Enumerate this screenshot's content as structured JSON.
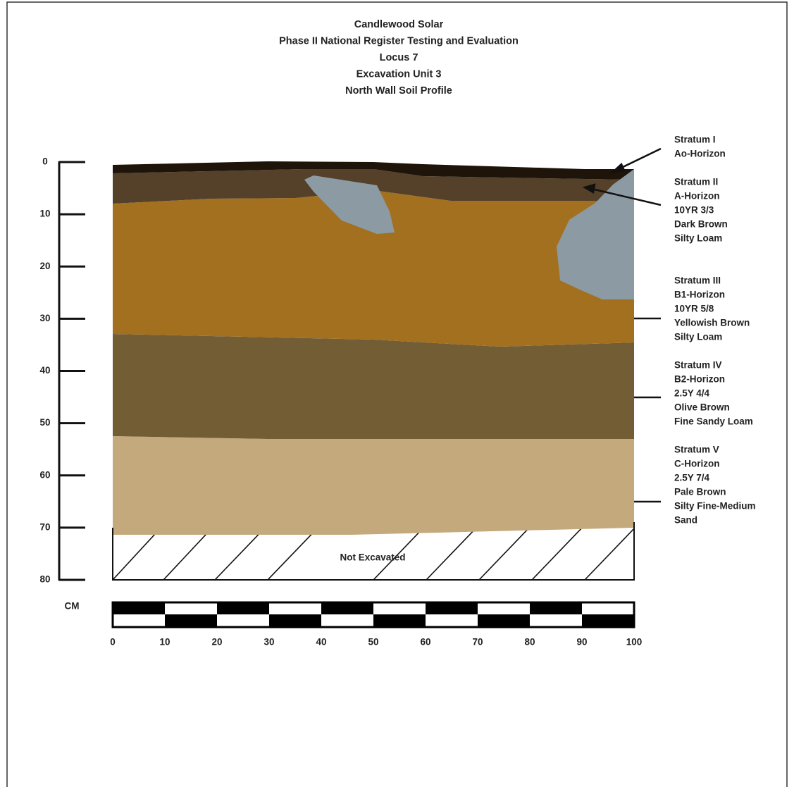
{
  "title_lines": [
    "Candlewood Solar",
    "Phase II National Register Testing and Evaluation",
    "Locus 7",
    "Excavation Unit 3",
    "North Wall Soil Profile"
  ],
  "depth_ticks": [
    0,
    10,
    20,
    30,
    40,
    50,
    60,
    70,
    80
  ],
  "width_ticks": [
    0,
    10,
    20,
    30,
    40,
    50,
    60,
    70,
    80,
    90,
    100
  ],
  "scale_unit": "CM",
  "not_excavated": "Not Excavated",
  "strata": [
    {
      "lines": [
        "Stratum I",
        "Ao-Horizon"
      ]
    },
    {
      "lines": [
        "Stratum II",
        "A-Horizon",
        "10YR 3/3",
        "Dark Brown",
        "Silty Loam"
      ]
    },
    {
      "lines": [
        "Stratum III",
        "B1-Horizon",
        "10YR 5/8",
        "Yellowish Brown",
        "Silty Loam"
      ]
    },
    {
      "lines": [
        "Stratum IV",
        "B2-Horizon",
        "2.5Y 4/4",
        "Olive Brown",
        "Fine Sandy Loam"
      ]
    },
    {
      "lines": [
        "Stratum V",
        "C-Horizon",
        "2.5Y 7/4",
        "Pale Brown",
        "Silty Fine-Medium",
        "Sand"
      ]
    }
  ]
}
